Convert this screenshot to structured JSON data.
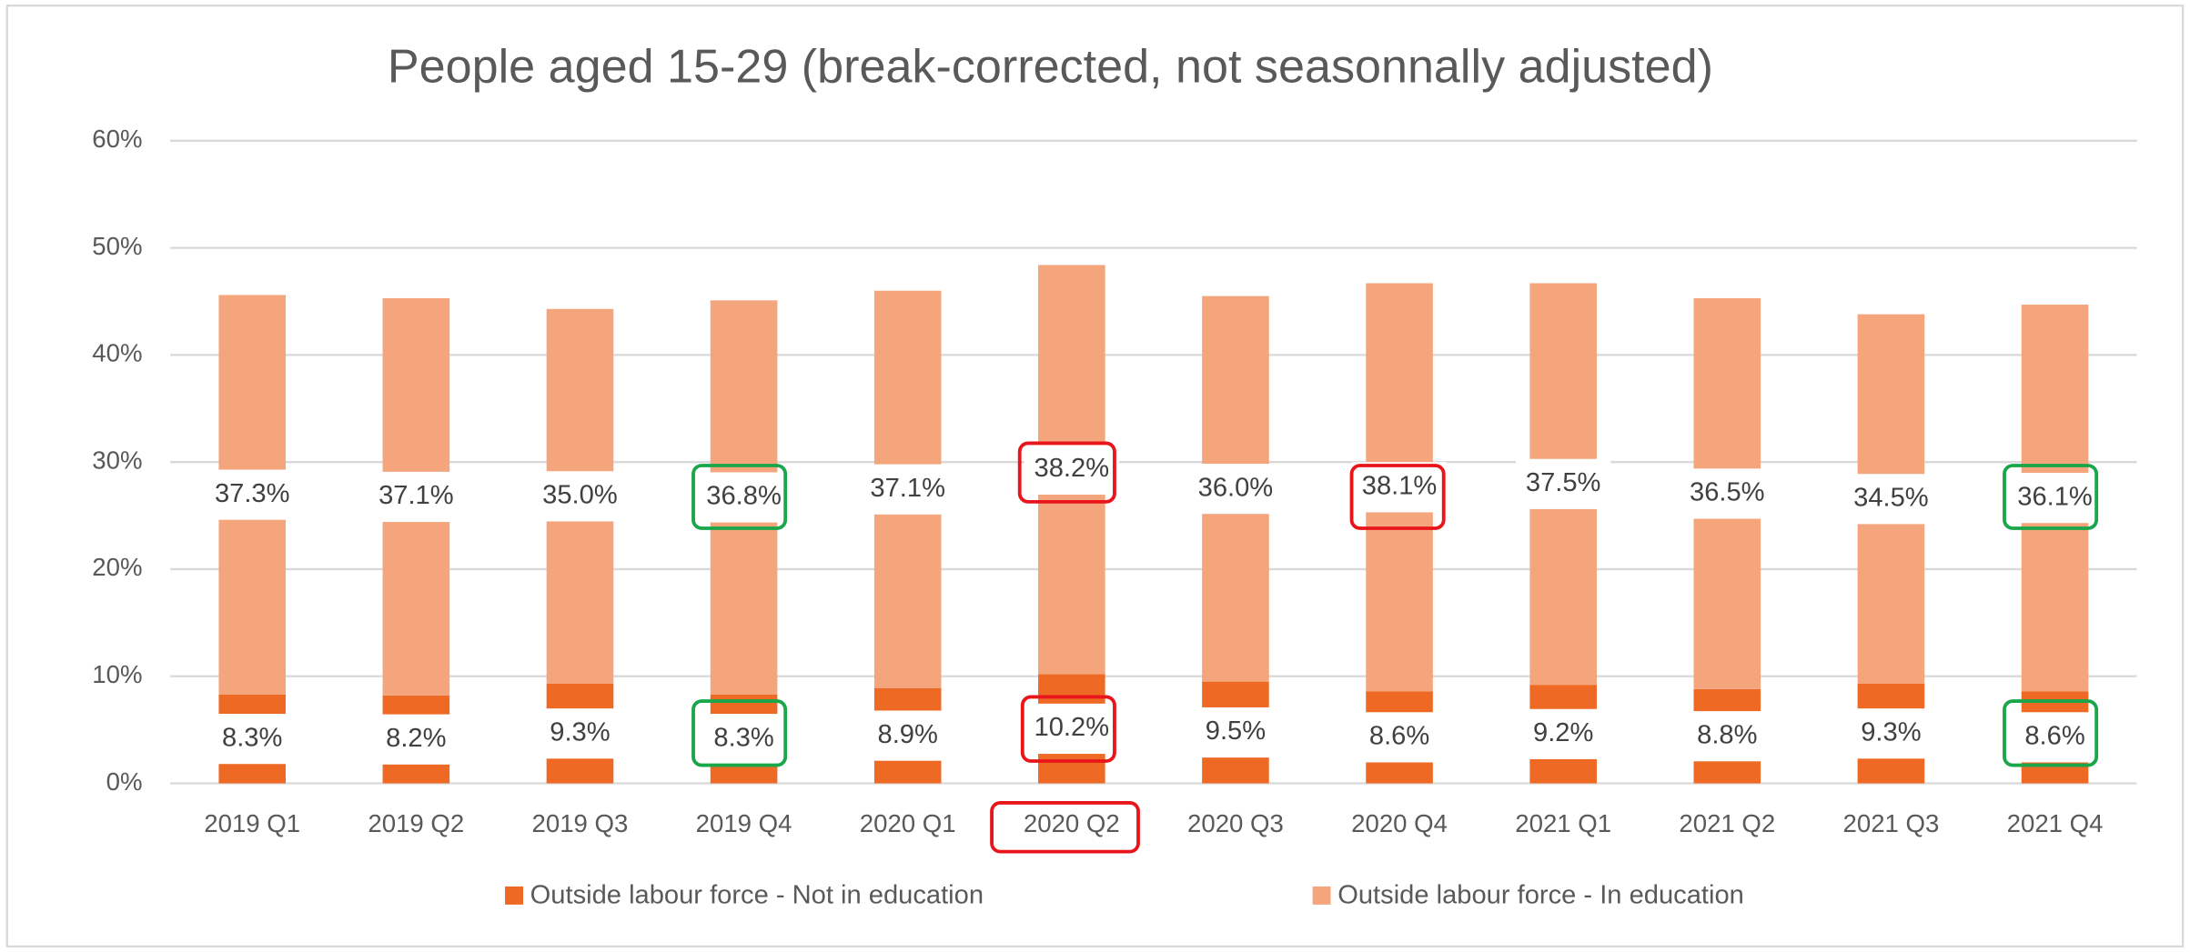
{
  "chart_data": {
    "type": "stacked_bar",
    "title": "People aged 15-29 (break-corrected, not seasonnally adjusted)",
    "categories": [
      "2019 Q1",
      "2019 Q2",
      "2019 Q3",
      "2019 Q4",
      "2020 Q1",
      "2020 Q2",
      "2020 Q3",
      "2020 Q4",
      "2021 Q1",
      "2021 Q2",
      "2021 Q3",
      "2021 Q4"
    ],
    "series": [
      {
        "name": "Outside labour force - Not in education",
        "color": "#EE6A24",
        "values": [
          8.3,
          8.2,
          9.3,
          8.3,
          8.9,
          10.2,
          9.5,
          8.6,
          9.2,
          8.8,
          9.3,
          8.6
        ],
        "value_labels": [
          "8.3%",
          "8.2%",
          "9.3%",
          "8.3%",
          "8.9%",
          "10.2%",
          "9.5%",
          "8.6%",
          "9.2%",
          "8.8%",
          "9.3%",
          "8.6%"
        ]
      },
      {
        "name": "Outside labour force - In education",
        "color": "#F4A57C",
        "values": [
          37.3,
          37.1,
          35.0,
          36.8,
          37.1,
          38.2,
          36.0,
          38.1,
          37.5,
          36.5,
          34.5,
          36.1
        ],
        "value_labels": [
          "37.3%",
          "37.1%",
          "35.0%",
          "36.8%",
          "37.1%",
          "38.2%",
          "36.0%",
          "38.1%",
          "37.5%",
          "36.5%",
          "34.5%",
          "36.1%"
        ]
      }
    ],
    "ylim": [
      0,
      60
    ],
    "yticks": [
      {
        "value": 0,
        "label": "0%"
      },
      {
        "value": 10,
        "label": "10%"
      },
      {
        "value": 20,
        "label": "20%"
      },
      {
        "value": 30,
        "label": "30%"
      },
      {
        "value": 40,
        "label": "40%"
      },
      {
        "value": 50,
        "label": "50%"
      },
      {
        "value": 60,
        "label": "60%"
      }
    ],
    "grid": true,
    "legend": "bottom"
  }
}
